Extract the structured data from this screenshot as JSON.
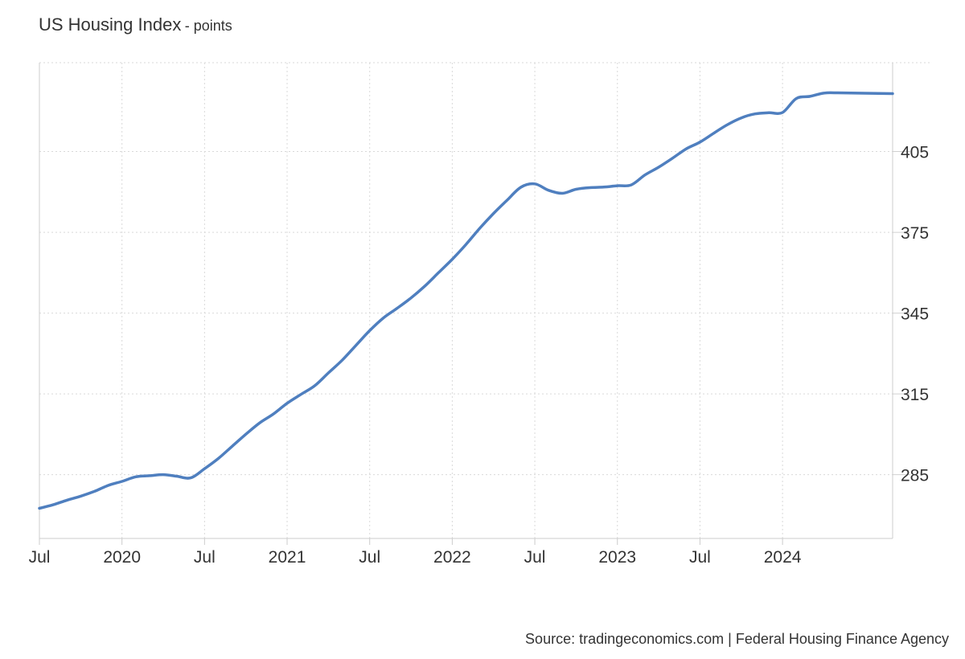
{
  "header": {
    "title": "US Housing Index",
    "unit": "- points"
  },
  "source": "Source: tradingeconomics.com | Federal Housing Finance Agency",
  "chart_data": {
    "type": "line",
    "title": "US Housing Index",
    "ylabel": "points",
    "xlabel": "",
    "x_range": [
      "2019-07",
      "2024-09"
    ],
    "ylim": [
      261.3,
      438
    ],
    "y_ticks": [
      285,
      315,
      345,
      375,
      405
    ],
    "x_ticks": [
      {
        "date": "2019-07",
        "label": "Jul"
      },
      {
        "date": "2020-01",
        "label": "2020"
      },
      {
        "date": "2020-07",
        "label": "Jul"
      },
      {
        "date": "2021-01",
        "label": "2021"
      },
      {
        "date": "2021-07",
        "label": "Jul"
      },
      {
        "date": "2022-01",
        "label": "2022"
      },
      {
        "date": "2022-07",
        "label": "Jul"
      },
      {
        "date": "2023-01",
        "label": "2023"
      },
      {
        "date": "2023-07",
        "label": "Jul"
      },
      {
        "date": "2024-01",
        "label": "2024"
      }
    ],
    "grid": true,
    "y_axis_position": "right",
    "series": [
      {
        "color": "#4f7fbf",
        "points": [
          [
            "2019-07",
            272.5
          ],
          [
            "2019-08",
            273.8
          ],
          [
            "2019-09",
            275.5
          ],
          [
            "2019-10",
            277.0
          ],
          [
            "2019-11",
            278.8
          ],
          [
            "2019-12",
            281.0
          ],
          [
            "2020-01",
            282.5
          ],
          [
            "2020-02",
            284.2
          ],
          [
            "2020-03",
            284.6
          ],
          [
            "2020-04",
            285.0
          ],
          [
            "2020-05",
            284.4
          ],
          [
            "2020-06",
            283.8
          ],
          [
            "2020-07",
            287.2
          ],
          [
            "2020-08",
            291.0
          ],
          [
            "2020-09",
            295.5
          ],
          [
            "2020-10",
            300.0
          ],
          [
            "2020-11",
            304.2
          ],
          [
            "2020-12",
            307.5
          ],
          [
            "2021-01",
            311.5
          ],
          [
            "2021-02",
            314.8
          ],
          [
            "2021-03",
            318.0
          ],
          [
            "2021-04",
            322.8
          ],
          [
            "2021-05",
            327.5
          ],
          [
            "2021-06",
            333.0
          ],
          [
            "2021-07",
            338.5
          ],
          [
            "2021-08",
            343.2
          ],
          [
            "2021-09",
            346.8
          ],
          [
            "2021-10",
            350.6
          ],
          [
            "2021-11",
            355.0
          ],
          [
            "2021-12",
            360.0
          ],
          [
            "2022-01",
            365.0
          ],
          [
            "2022-02",
            370.5
          ],
          [
            "2022-03",
            376.5
          ],
          [
            "2022-04",
            382.0
          ],
          [
            "2022-05",
            387.0
          ],
          [
            "2022-06",
            391.8
          ],
          [
            "2022-07",
            393.0
          ],
          [
            "2022-08",
            390.6
          ],
          [
            "2022-09",
            389.5
          ],
          [
            "2022-10",
            391.0
          ],
          [
            "2022-11",
            391.6
          ],
          [
            "2022-12",
            391.8
          ],
          [
            "2023-01",
            392.3
          ],
          [
            "2023-02",
            392.6
          ],
          [
            "2023-03",
            396.3
          ],
          [
            "2023-04",
            399.2
          ],
          [
            "2023-05",
            402.5
          ],
          [
            "2023-06",
            406.0
          ],
          [
            "2023-07",
            408.5
          ],
          [
            "2023-08",
            411.8
          ],
          [
            "2023-09",
            415.0
          ],
          [
            "2023-10",
            417.5
          ],
          [
            "2023-11",
            419.0
          ],
          [
            "2023-12",
            419.4
          ],
          [
            "2024-01",
            419.5
          ],
          [
            "2024-02",
            424.7
          ],
          [
            "2024-03",
            425.5
          ],
          [
            "2024-04",
            426.7
          ],
          [
            "2024-05",
            426.8
          ],
          [
            "2024-09",
            426.5
          ]
        ]
      }
    ]
  }
}
